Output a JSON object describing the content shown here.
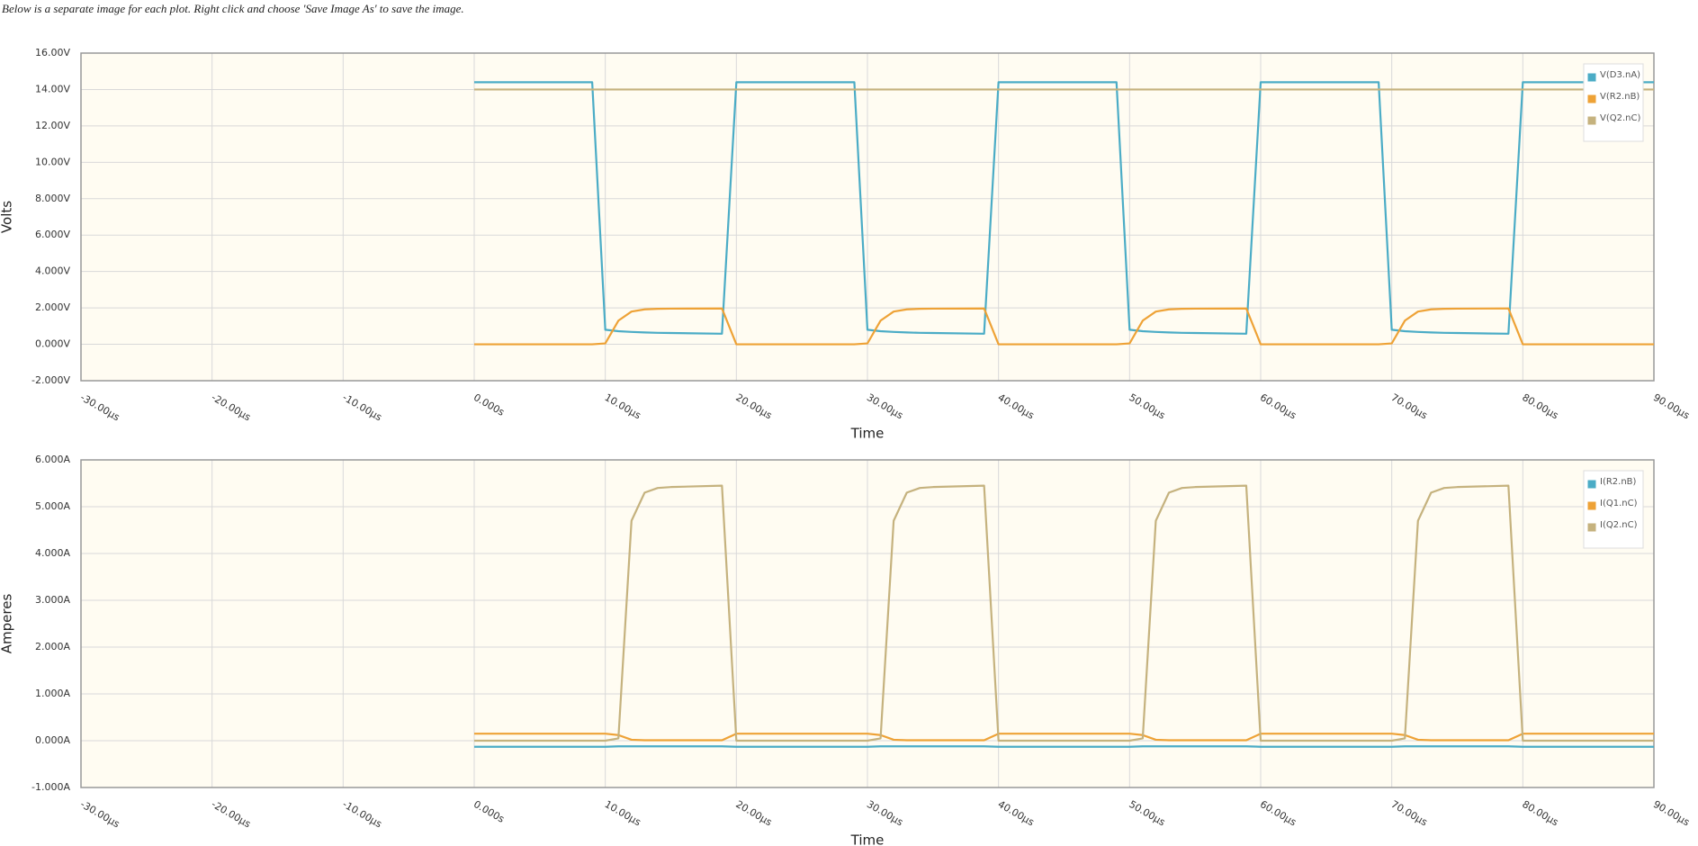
{
  "caption": "Below is a separate image for each plot. Right click and choose 'Save Image As' to save the image.",
  "chart_data": [
    {
      "type": "line",
      "xlabel": "Time",
      "ylabel": "Volts",
      "grid": true,
      "legend": "upper right",
      "xlim": [
        -30,
        90
      ],
      "xticks": [
        {
          "value": -30,
          "label": "-30.00µs"
        },
        {
          "value": -20,
          "label": "-20.00µs"
        },
        {
          "value": -10,
          "label": "-10.00µs"
        },
        {
          "value": 0,
          "label": "0.000s"
        },
        {
          "value": 10,
          "label": "10.00µs"
        },
        {
          "value": 20,
          "label": "20.00µs"
        },
        {
          "value": 30,
          "label": "30.00µs"
        },
        {
          "value": 40,
          "label": "40.00µs"
        },
        {
          "value": 50,
          "label": "50.00µs"
        },
        {
          "value": 60,
          "label": "60.00µs"
        },
        {
          "value": 70,
          "label": "70.00µs"
        },
        {
          "value": 80,
          "label": "80.00µs"
        },
        {
          "value": 90,
          "label": "90.00µs"
        }
      ],
      "ylim": [
        -2,
        16
      ],
      "yticks": [
        {
          "value": -2,
          "label": "-2.000V"
        },
        {
          "value": 0,
          "label": "0.000V"
        },
        {
          "value": 2,
          "label": "2.000V"
        },
        {
          "value": 4,
          "label": "4.000V"
        },
        {
          "value": 6,
          "label": "6.000V"
        },
        {
          "value": 8,
          "label": "8.000V"
        },
        {
          "value": 10,
          "label": "10.00V"
        },
        {
          "value": 12,
          "label": "12.00V"
        },
        {
          "value": 14,
          "label": "14.00V"
        },
        {
          "value": 16,
          "label": "16.00V"
        }
      ],
      "x": [
        0,
        9,
        10,
        11,
        12,
        13,
        14,
        15,
        18.9,
        20,
        29,
        30,
        31,
        32,
        33,
        34,
        35,
        38.9,
        40,
        49,
        50,
        51,
        52,
        53,
        54,
        55,
        58.9,
        60,
        69,
        70,
        71,
        72,
        73,
        74,
        75,
        78.9,
        80,
        90
      ],
      "series": [
        {
          "name": "V(D3.nA)",
          "color": "#4bacc6",
          "values": [
            14.4,
            14.4,
            0.8,
            0.72,
            0.68,
            0.65,
            0.63,
            0.62,
            0.58,
            14.4,
            14.4,
            0.8,
            0.72,
            0.68,
            0.65,
            0.63,
            0.62,
            0.58,
            14.4,
            14.4,
            0.8,
            0.72,
            0.68,
            0.65,
            0.63,
            0.62,
            0.58,
            14.4,
            14.4,
            0.8,
            0.72,
            0.68,
            0.65,
            0.63,
            0.62,
            0.58,
            14.4,
            14.4
          ]
        },
        {
          "name": "V(R2.nB)",
          "color": "#eea236",
          "values": [
            0,
            0,
            0.05,
            1.3,
            1.8,
            1.92,
            1.95,
            1.96,
            1.97,
            0,
            0,
            0.05,
            1.3,
            1.8,
            1.92,
            1.95,
            1.96,
            1.97,
            0,
            0,
            0.05,
            1.3,
            1.8,
            1.92,
            1.95,
            1.96,
            1.97,
            0,
            0,
            0.05,
            1.3,
            1.8,
            1.92,
            1.95,
            1.96,
            1.97,
            0,
            0
          ]
        },
        {
          "name": "V(Q2.nC)",
          "color": "#c5b27e",
          "values": [
            14,
            14,
            14,
            14,
            14,
            14,
            14,
            14,
            14,
            14,
            14,
            14,
            14,
            14,
            14,
            14,
            14,
            14,
            14,
            14,
            14,
            14,
            14,
            14,
            14,
            14,
            14,
            14,
            14,
            14,
            14,
            14,
            14,
            14,
            14,
            14,
            14,
            14
          ]
        }
      ]
    },
    {
      "type": "line",
      "xlabel": "Time",
      "ylabel": "Amperes",
      "grid": true,
      "legend": "upper right",
      "xlim": [
        -30,
        90
      ],
      "xticks": [
        {
          "value": -30,
          "label": "-30.00µs"
        },
        {
          "value": -20,
          "label": "-20.00µs"
        },
        {
          "value": -10,
          "label": "-10.00µs"
        },
        {
          "value": 0,
          "label": "0.000s"
        },
        {
          "value": 10,
          "label": "10.00µs"
        },
        {
          "value": 20,
          "label": "20.00µs"
        },
        {
          "value": 30,
          "label": "30.00µs"
        },
        {
          "value": 40,
          "label": "40.00µs"
        },
        {
          "value": 50,
          "label": "50.00µs"
        },
        {
          "value": 60,
          "label": "60.00µs"
        },
        {
          "value": 70,
          "label": "70.00µs"
        },
        {
          "value": 80,
          "label": "80.00µs"
        },
        {
          "value": 90,
          "label": "90.00µs"
        }
      ],
      "ylim": [
        -1,
        6
      ],
      "yticks": [
        {
          "value": -1,
          "label": "-1.000A"
        },
        {
          "value": 0,
          "label": "0.000A"
        },
        {
          "value": 1,
          "label": "1.000A"
        },
        {
          "value": 2,
          "label": "2.000A"
        },
        {
          "value": 3,
          "label": "3.000A"
        },
        {
          "value": 4,
          "label": "4.000A"
        },
        {
          "value": 5,
          "label": "5.000A"
        },
        {
          "value": 6,
          "label": "6.000A"
        }
      ],
      "x": [
        0,
        9,
        10,
        11,
        12,
        13,
        14,
        15,
        18.9,
        20,
        29,
        30,
        31,
        32,
        33,
        34,
        35,
        38.9,
        40,
        49,
        50,
        51,
        52,
        53,
        54,
        55,
        58.9,
        60,
        69,
        70,
        71,
        72,
        73,
        74,
        75,
        78.9,
        80,
        90
      ],
      "series": [
        {
          "name": "I(R2.nB)",
          "color": "#4bacc6",
          "values": [
            -0.13,
            -0.13,
            -0.13,
            -0.12,
            -0.12,
            -0.12,
            -0.12,
            -0.12,
            -0.12,
            -0.13,
            -0.13,
            -0.13,
            -0.12,
            -0.12,
            -0.12,
            -0.12,
            -0.12,
            -0.12,
            -0.13,
            -0.13,
            -0.13,
            -0.12,
            -0.12,
            -0.12,
            -0.12,
            -0.12,
            -0.12,
            -0.13,
            -0.13,
            -0.13,
            -0.12,
            -0.12,
            -0.12,
            -0.12,
            -0.12,
            -0.12,
            -0.13,
            -0.13
          ]
        },
        {
          "name": "I(Q1.nC)",
          "color": "#eea236",
          "values": [
            0.15,
            0.15,
            0.15,
            0.12,
            0.02,
            0.01,
            0.01,
            0.01,
            0.01,
            0.15,
            0.15,
            0.15,
            0.12,
            0.02,
            0.01,
            0.01,
            0.01,
            0.01,
            0.15,
            0.15,
            0.15,
            0.12,
            0.02,
            0.01,
            0.01,
            0.01,
            0.01,
            0.15,
            0.15,
            0.15,
            0.12,
            0.02,
            0.01,
            0.01,
            0.01,
            0.01,
            0.15,
            0.15
          ]
        },
        {
          "name": "I(Q2.nC)",
          "color": "#c5b27e",
          "values": [
            0,
            0,
            0,
            0.05,
            4.7,
            5.3,
            5.4,
            5.42,
            5.45,
            0,
            0,
            0,
            0.05,
            4.7,
            5.3,
            5.4,
            5.42,
            5.45,
            0,
            0,
            0,
            0.05,
            4.7,
            5.3,
            5.4,
            5.42,
            5.45,
            0,
            0,
            0,
            0.05,
            4.7,
            5.3,
            5.4,
            5.42,
            5.45,
            0,
            0
          ]
        }
      ]
    }
  ]
}
